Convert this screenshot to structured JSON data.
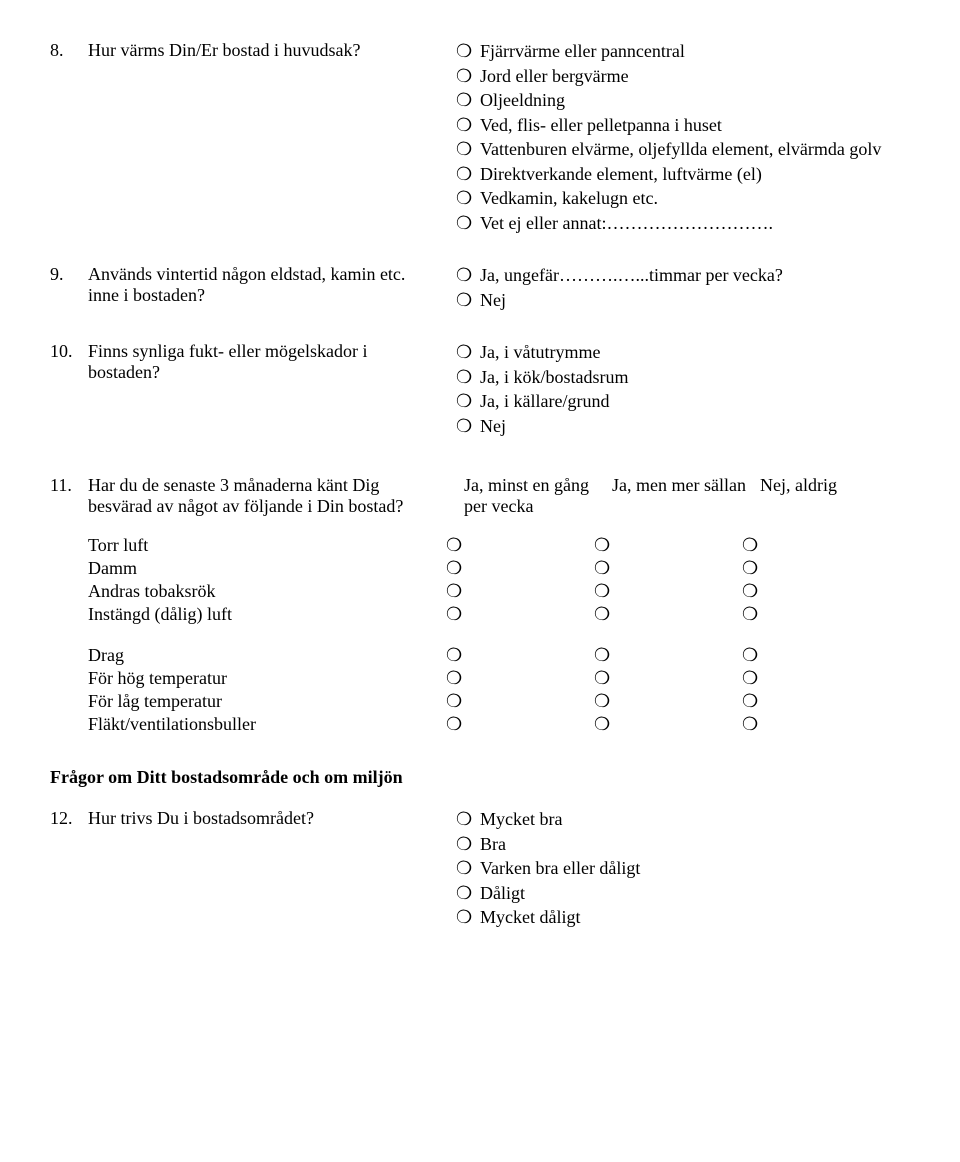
{
  "bullet_glyph": "❍",
  "q8": {
    "num": "8.",
    "text": "Hur värms Din/Er bostad i huvudsak?",
    "options": [
      "Fjärrvärme eller panncentral",
      "Jord eller bergvärme",
      "Oljeeldning",
      "Ved, flis- eller pelletpanna i huset",
      "Vattenburen elvärme, oljefyllda element, elvärmda golv",
      "Direktverkande element, luftvärme (el)",
      "Vedkamin, kakelugn etc.",
      "Vet ej eller annat:………………………."
    ]
  },
  "q9": {
    "num": "9.",
    "text": "Används vintertid någon eldstad, kamin etc. inne i bostaden?",
    "options": [
      "Ja, ungefär……….…...timmar per vecka?",
      "Nej"
    ]
  },
  "q10": {
    "num": "10.",
    "text": "Finns synliga fukt- eller mögelskador i bostaden?",
    "options": [
      "Ja, i våtutrymme",
      "Ja, i kök/bostadsrum",
      "Ja, i källare/grund",
      "Nej"
    ]
  },
  "q11": {
    "num": "11.",
    "text": "Har du de senaste 3 månaderna känt Dig besvärad av något av följande i Din bostad?",
    "cols": [
      "Ja, minst en gång per vecka",
      "Ja, men mer sällan",
      "Nej, aldrig"
    ],
    "group1": [
      "Torr luft",
      "Damm",
      "Andras tobaksrök",
      "Instängd (dålig) luft"
    ],
    "group2": [
      "Drag",
      "För hög temperatur",
      "För låg temperatur",
      "Fläkt/ventilationsbuller"
    ]
  },
  "section2_title": "Frågor om Ditt bostadsområde och om miljön",
  "q12": {
    "num": "12.",
    "text": "Hur trivs Du i bostadsområdet?",
    "options": [
      "Mycket bra",
      "Bra",
      "Varken bra eller dåligt",
      "Dåligt",
      "Mycket dåligt"
    ]
  }
}
